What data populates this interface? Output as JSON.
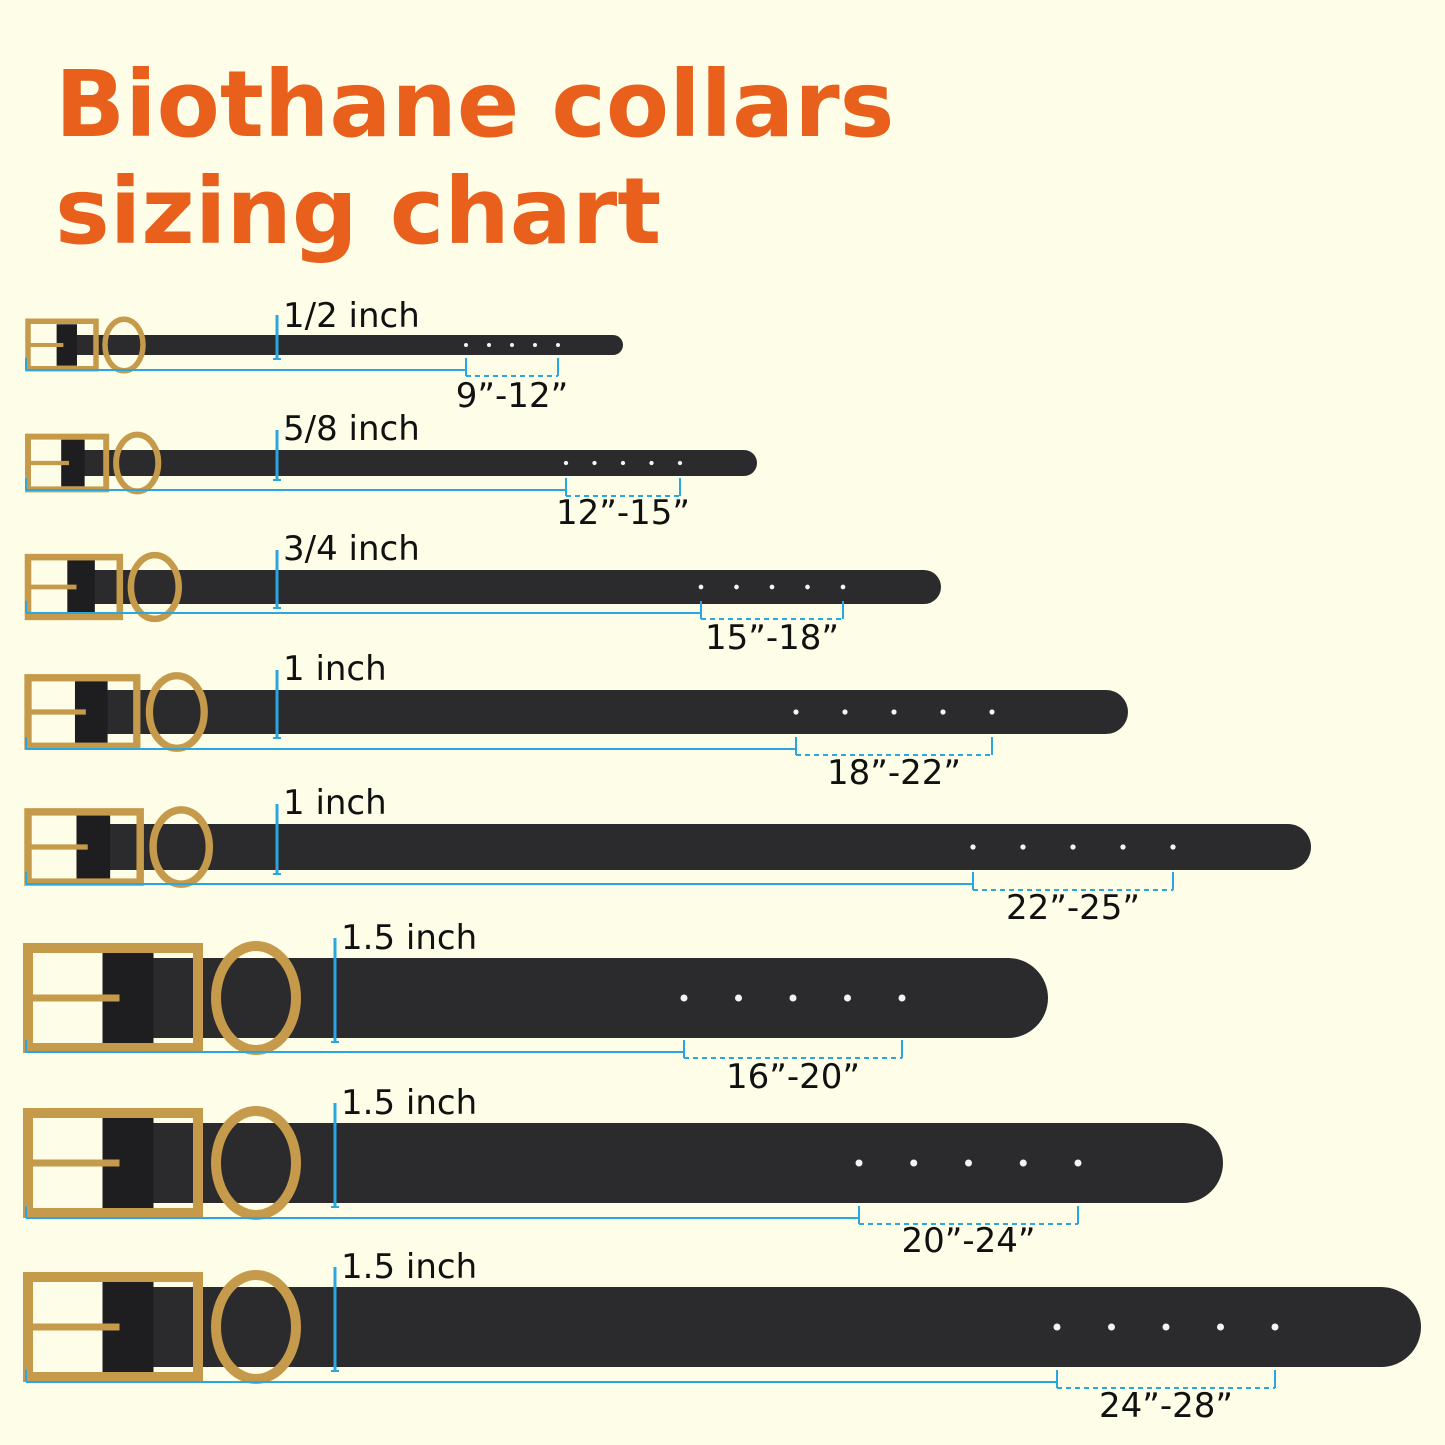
{
  "header": {
    "title": [
      "Biothane collars",
      "sizing chart"
    ]
  },
  "collars": [
    {
      "width": "1/2 inch",
      "range": "9”-12”"
    },
    {
      "width": "5/8 inch",
      "range": "12”-15”"
    },
    {
      "width": "3/4 inch",
      "range": "15”-18”"
    },
    {
      "width": "1 inch",
      "range": "18”-22”"
    },
    {
      "width": "1 inch",
      "range": "22”-25”"
    },
    {
      "width": "1.5 inch",
      "range": "16”-20”"
    },
    {
      "width": "1.5 inch",
      "range": "20”-24”"
    },
    {
      "width": "1.5 inch",
      "range": "24”-28”"
    }
  ]
}
